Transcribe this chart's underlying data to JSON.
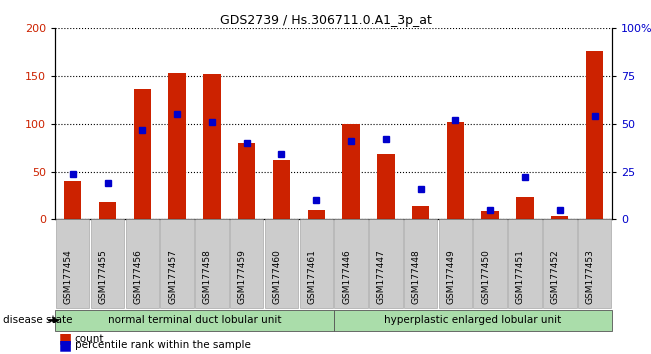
{
  "title": "GDS2739 / Hs.306711.0.A1_3p_at",
  "categories": [
    "GSM177454",
    "GSM177455",
    "GSM177456",
    "GSM177457",
    "GSM177458",
    "GSM177459",
    "GSM177460",
    "GSM177461",
    "GSM177446",
    "GSM177447",
    "GSM177448",
    "GSM177449",
    "GSM177450",
    "GSM177451",
    "GSM177452",
    "GSM177453"
  ],
  "counts": [
    40,
    18,
    136,
    153,
    152,
    80,
    62,
    10,
    100,
    68,
    14,
    102,
    9,
    24,
    4,
    176
  ],
  "percentiles": [
    24,
    19,
    47,
    55,
    51,
    40,
    34,
    10,
    41,
    42,
    16,
    52,
    5,
    22,
    5,
    54
  ],
  "bar_color": "#cc2200",
  "percentile_color": "#0000cc",
  "ylim_left": [
    0,
    200
  ],
  "ylim_right": [
    0,
    100
  ],
  "yticks_left": [
    0,
    50,
    100,
    150,
    200
  ],
  "yticks_right": [
    0,
    25,
    50,
    75,
    100
  ],
  "yticklabels_right": [
    "0",
    "25",
    "50",
    "75",
    "100%"
  ],
  "grid_color": "black",
  "group1_label": "normal terminal duct lobular unit",
  "group2_label": "hyperplastic enlarged lobular unit",
  "group1_indices": [
    0,
    1,
    2,
    3,
    4,
    5,
    6,
    7
  ],
  "group2_indices": [
    8,
    9,
    10,
    11,
    12,
    13,
    14,
    15
  ],
  "group_color": "#aaddaa",
  "disease_state_label": "disease state",
  "legend_count": "count",
  "legend_percentile": "percentile rank within the sample",
  "bar_width": 0.5,
  "left_color": "#cc2200",
  "right_color": "#0000cc",
  "xtick_bg": "#cccccc",
  "xtick_label_size": 6.5
}
